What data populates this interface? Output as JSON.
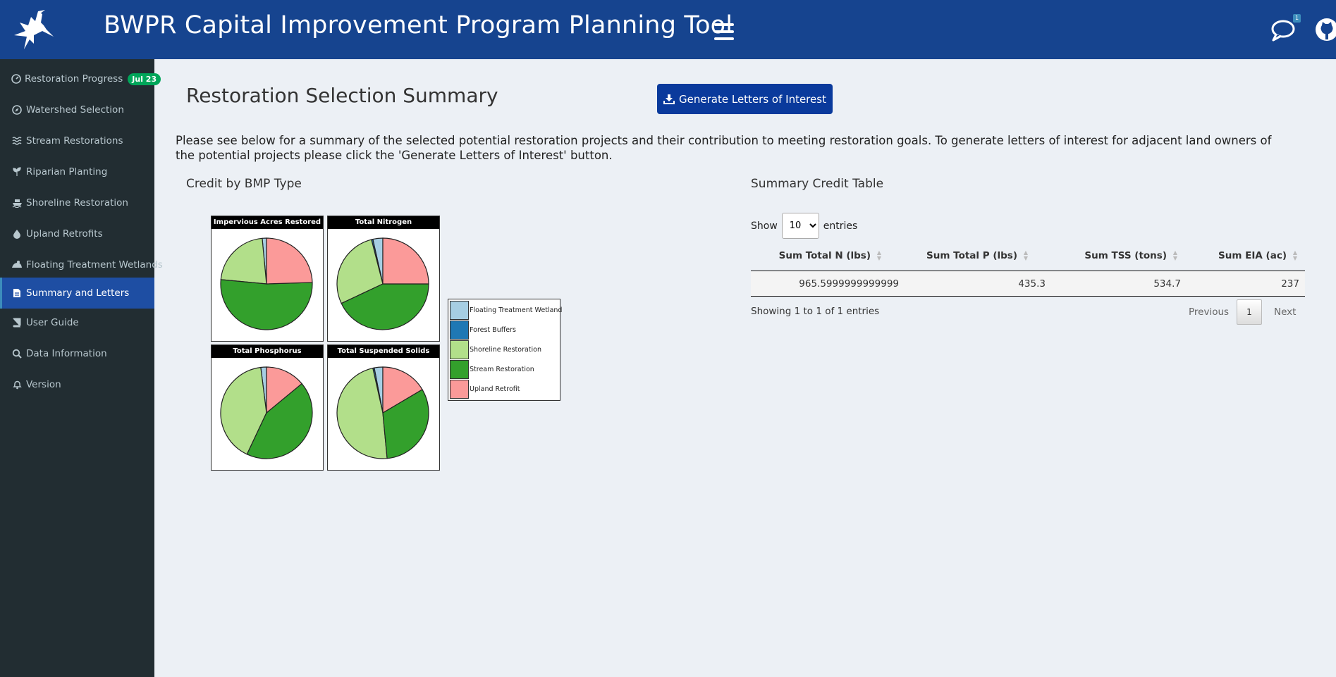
{
  "header": {
    "title": "BWPR Capital Improvement Program Planning Tool",
    "chat_badge": "1"
  },
  "sidebar": {
    "items": [
      {
        "label": "Restoration Progress",
        "icon": "tachometer-icon",
        "badge": "Jul 23"
      },
      {
        "label": "Watershed Selection",
        "icon": "compass-icon"
      },
      {
        "label": "Stream Restorations",
        "icon": "water-icon"
      },
      {
        "label": "Riparian Planting",
        "icon": "seedling-icon"
      },
      {
        "label": "Shoreline Restoration",
        "icon": "ship-icon"
      },
      {
        "label": "Upland Retrofits",
        "icon": "tint-icon"
      },
      {
        "label": "Floating Treatment Wetlands",
        "icon": "frog-icon"
      },
      {
        "label": "Summary and Letters",
        "icon": "file-icon",
        "active": true
      },
      {
        "label": "User Guide",
        "icon": "book-icon"
      },
      {
        "label": "Data Information",
        "icon": "search-icon"
      },
      {
        "label": "Version",
        "icon": "bell-icon"
      }
    ]
  },
  "main": {
    "title": "Restoration Selection Summary",
    "generate_button": "Generate Letters of Interest",
    "intro": "Please see below for a summary of the selected potential restoration projects and their contribution to meeting restoration goals. To generate letters of interest for adjacent land owners of the potential projects please click the 'Generate Letters of Interest' button.",
    "credit_heading": "Credit by BMP Type",
    "table_heading": "Summary Credit Table"
  },
  "chart_data": {
    "type": "pie",
    "colors": {
      "Floating Treatment Wetland": "#a6cee3",
      "Forest Buffers": "#1f78b4",
      "Shoreline Restoration": "#b2df8a",
      "Stream Restoration": "#33a02c",
      "Upland Retrofit": "#fb9a99"
    },
    "legend": [
      "Floating Treatment Wetland",
      "Forest Buffers",
      "Shoreline Restoration",
      "Stream Restoration",
      "Upland Retrofit"
    ],
    "panels": [
      {
        "title": "Impervious Acres Restored",
        "slices": [
          {
            "label": "Floating Treatment Wetland",
            "value": 1.5
          },
          {
            "label": "Shoreline Restoration",
            "value": 22
          },
          {
            "label": "Stream Restoration",
            "value": 52
          },
          {
            "label": "Upland Retrofit",
            "value": 24.5
          }
        ]
      },
      {
        "title": "Total Nitrogen",
        "slices": [
          {
            "label": "Floating Treatment Wetland",
            "value": 3.5
          },
          {
            "label": "Forest Buffers",
            "value": 0.5
          },
          {
            "label": "Shoreline Restoration",
            "value": 28
          },
          {
            "label": "Stream Restoration",
            "value": 43
          },
          {
            "label": "Upland Retrofit",
            "value": 25
          }
        ]
      },
      {
        "title": "Total Phosphorus",
        "slices": [
          {
            "label": "Floating Treatment Wetland",
            "value": 2
          },
          {
            "label": "Shoreline Restoration",
            "value": 41
          },
          {
            "label": "Stream Restoration",
            "value": 43
          },
          {
            "label": "Upland Retrofit",
            "value": 14
          }
        ]
      },
      {
        "title": "Total Suspended Solids",
        "slices": [
          {
            "label": "Floating Treatment Wetland",
            "value": 3
          },
          {
            "label": "Forest Buffers",
            "value": 0.5
          },
          {
            "label": "Shoreline Restoration",
            "value": 48
          },
          {
            "label": "Stream Restoration",
            "value": 32
          },
          {
            "label": "Upland Retrofit",
            "value": 16.5
          }
        ]
      }
    ]
  },
  "table": {
    "show_label": "Show",
    "entries_label": "entries",
    "page_length": "10",
    "columns": [
      "Sum Total N (lbs)",
      "Sum Total P (lbs)",
      "Sum TSS (tons)",
      "Sum EIA (ac)"
    ],
    "rows": [
      [
        "965.5999999999999",
        "435.3",
        "534.7",
        "237"
      ]
    ],
    "info": "Showing 1 to 1 of 1 entries",
    "previous": "Previous",
    "current_page": "1",
    "next": "Next"
  }
}
